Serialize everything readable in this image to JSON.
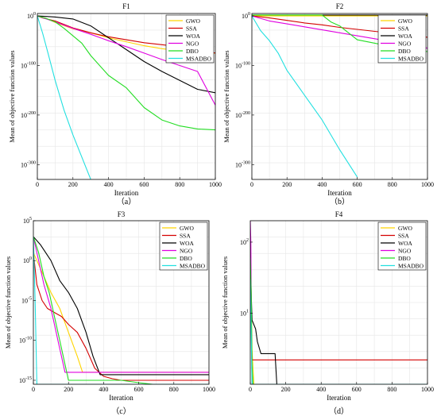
{
  "figure": {
    "ylabel": "Mean of objective function values",
    "xlabel": "Iteration"
  },
  "colors": {
    "GWO": "#ffd400",
    "SSA": "#d40000",
    "WOA": "#000000",
    "NGO": "#e000e0",
    "DBO": "#22dd22",
    "MSADBO": "#22e0e0"
  },
  "chart_data": [
    {
      "type": "line",
      "title": "F1",
      "caption": "（a）",
      "xlabel": "Iteration",
      "ylabel": "Mean of objective function values",
      "yscale": "log",
      "xlim": [
        0,
        1000
      ],
      "ylim_exp": [
        -330,
        5
      ],
      "xticks": [
        0,
        200,
        400,
        600,
        800,
        1000
      ],
      "yticks": [
        {
          "exp": 0,
          "label": "10^0"
        },
        {
          "exp": -100,
          "label": "10^-100"
        },
        {
          "exp": -200,
          "label": "10^-200"
        },
        {
          "exp": -300,
          "label": "10^-300"
        }
      ],
      "grid": true,
      "legend": "top-right",
      "series": [
        {
          "name": "GWO",
          "x": [
            0,
            50,
            100,
            200,
            300,
            400,
            500,
            600,
            700,
            800,
            900,
            1000
          ],
          "y_exp": [
            0,
            -5,
            -13,
            -26,
            -34,
            -44,
            -52,
            -60,
            -66,
            -70,
            -72,
            -75
          ]
        },
        {
          "name": "SSA",
          "x": [
            0,
            30,
            100,
            200,
            300,
            400,
            500,
            600,
            700,
            800,
            900,
            1000
          ],
          "y_exp": [
            0,
            -4,
            -10,
            -24,
            -34,
            -42,
            -48,
            -54,
            -58,
            -62,
            -66,
            -75
          ]
        },
        {
          "name": "WOA",
          "x": [
            0,
            50,
            100,
            200,
            300,
            400,
            500,
            600,
            700,
            800,
            900,
            1000
          ],
          "y_exp": [
            0,
            -1,
            -2,
            -6,
            -20,
            -44,
            -68,
            -92,
            -112,
            -130,
            -148,
            -155
          ]
        },
        {
          "name": "NGO",
          "x": [
            0,
            100,
            200,
            300,
            400,
            500,
            600,
            700,
            800,
            900,
            1000
          ],
          "y_exp": [
            0,
            -12,
            -25,
            -37,
            -50,
            -62,
            -75,
            -88,
            -100,
            -112,
            -180
          ]
        },
        {
          "name": "DBO",
          "x": [
            0,
            50,
            100,
            150,
            200,
            250,
            300,
            400,
            500,
            600,
            700,
            800,
            900,
            1000
          ],
          "y_exp": [
            0,
            -5,
            -12,
            -25,
            -40,
            -55,
            -80,
            -120,
            -145,
            -185,
            -210,
            -222,
            -228,
            -230
          ]
        },
        {
          "name": "MSADBO",
          "x": [
            0,
            30,
            60,
            100,
            150,
            200,
            250,
            300
          ],
          "y_exp": [
            0,
            -35,
            -75,
            -130,
            -190,
            -240,
            -285,
            -330
          ]
        }
      ]
    },
    {
      "type": "line",
      "title": "F2",
      "caption": "（b）",
      "xlabel": "Iteration",
      "ylabel": "Mean of objective function values",
      "yscale": "log",
      "xlim": [
        0,
        1000
      ],
      "ylim_exp": [
        -330,
        5
      ],
      "xticks": [
        0,
        200,
        400,
        600,
        800,
        1000
      ],
      "yticks": [
        {
          "exp": 0,
          "label": "10^0"
        },
        {
          "exp": -100,
          "label": "10^-100"
        },
        {
          "exp": -200,
          "label": "10^-200"
        },
        {
          "exp": -300,
          "label": "10^-300"
        }
      ],
      "grid": true,
      "legend": "top-right",
      "series": [
        {
          "name": "GWO",
          "x": [
            0,
            1000
          ],
          "y_exp": [
            0,
            0
          ]
        },
        {
          "name": "SSA",
          "x": [
            0,
            100,
            200,
            300,
            400,
            500,
            600,
            700,
            800,
            900,
            1000
          ],
          "y_exp": [
            0,
            -4,
            -9,
            -14,
            -18,
            -23,
            -27,
            -31,
            -35,
            -39,
            -43
          ]
        },
        {
          "name": "WOA",
          "x": [
            0,
            1000
          ],
          "y_exp": [
            2,
            2
          ]
        },
        {
          "name": "NGO",
          "x": [
            0,
            100,
            200,
            300,
            400,
            500,
            600,
            700,
            800,
            900,
            1000
          ],
          "y_exp": [
            0,
            -10,
            -16,
            -22,
            -28,
            -34,
            -40,
            -46,
            -52,
            -58,
            -65
          ]
        },
        {
          "name": "DBO",
          "x": [
            0,
            100,
            200,
            300,
            400,
            450,
            500,
            600,
            700,
            800,
            900,
            1000
          ],
          "y_exp": [
            2,
            2,
            2,
            2,
            2,
            -12,
            -20,
            -48,
            -55,
            -62,
            -68,
            -72
          ]
        },
        {
          "name": "MSADBO",
          "x": [
            0,
            50,
            100,
            150,
            200,
            300,
            400,
            500,
            600
          ],
          "y_exp": [
            0,
            -30,
            -50,
            -75,
            -110,
            -160,
            -210,
            -270,
            -325
          ]
        }
      ]
    },
    {
      "type": "line",
      "title": "F3",
      "caption": "（c）",
      "xlabel": "Iteration",
      "ylabel": "Mean of objective function values",
      "yscale": "log",
      "xlim": [
        0,
        1000
      ],
      "ylim_exp": [
        -15.5,
        5
      ],
      "xticks": [
        0,
        200,
        400,
        600,
        800,
        1000
      ],
      "yticks": [
        {
          "exp": 5,
          "label": "10^5"
        },
        {
          "exp": 0,
          "label": "10^0"
        },
        {
          "exp": -5,
          "label": "10^-5"
        },
        {
          "exp": -10,
          "label": "10^-10"
        },
        {
          "exp": -15,
          "label": "10^-15"
        }
      ],
      "grid": true,
      "legend": "top-right",
      "series": [
        {
          "name": "GWO",
          "x": [
            0,
            20,
            60,
            100,
            150,
            200,
            250,
            280,
            300,
            1000
          ],
          "y_exp": [
            1,
            0,
            -2,
            -4,
            -6,
            -9,
            -12,
            -14,
            -14,
            -14
          ]
        },
        {
          "name": "SSA",
          "x": [
            0,
            20,
            50,
            80,
            120,
            160,
            200,
            250,
            300,
            350,
            400,
            450,
            500,
            1000
          ],
          "y_exp": [
            1,
            -3,
            -5,
            -6,
            -6.5,
            -7,
            -8,
            -9,
            -11,
            -13.5,
            -14.5,
            -14.8,
            -15,
            -15
          ]
        },
        {
          "name": "WOA",
          "x": [
            0,
            40,
            100,
            150,
            200,
            250,
            300,
            340,
            380,
            1000
          ],
          "y_exp": [
            3,
            2,
            0,
            -2.5,
            -4,
            -6,
            -9,
            -12,
            -14.3,
            -14.3
          ]
        },
        {
          "name": "NGO",
          "x": [
            0,
            30,
            60,
            100,
            140,
            170,
            180,
            1000
          ],
          "y_exp": [
            3,
            0,
            -3,
            -6,
            -10,
            -13,
            -14,
            -14
          ]
        },
        {
          "name": "DBO",
          "x": [
            0,
            30,
            60,
            90,
            120,
            150,
            180,
            200,
            250,
            500,
            600,
            680
          ],
          "y_exp": [
            3,
            1,
            -2,
            -4,
            -7,
            -10,
            -13,
            -15,
            -15,
            -15,
            -15.3,
            -15.5
          ]
        },
        {
          "name": "MSADBO",
          "x": [
            0,
            10,
            20,
            1000
          ],
          "y_exp": [
            3,
            -5,
            -15.5,
            -15.5
          ]
        }
      ]
    },
    {
      "type": "line",
      "title": "F4",
      "caption": "（d）",
      "xlabel": "Iteration",
      "ylabel": "Mean of objective function values",
      "yscale": "log",
      "xlim": [
        0,
        1000
      ],
      "ylim": [
        1,
        200
      ],
      "xticks": [
        0,
        200,
        400,
        600,
        800,
        1000
      ],
      "yticks": [
        {
          "value": 10,
          "label": "10^1"
        },
        {
          "value": 100,
          "label": "10^2"
        }
      ],
      "grid": true,
      "legend": "top-right",
      "series": [
        {
          "name": "GWO",
          "x": [
            0,
            5,
            10,
            20,
            1000
          ],
          "y": [
            100,
            20,
            3,
            1,
            1
          ]
        },
        {
          "name": "SSA",
          "x": [
            0,
            5,
            10,
            1000
          ],
          "y": [
            100,
            10,
            2.2,
            2.2
          ]
        },
        {
          "name": "WOA",
          "x": [
            0,
            5,
            10,
            30,
            40,
            60,
            140,
            150,
            1000
          ],
          "y": [
            100,
            20,
            8,
            6,
            4,
            2.7,
            2.7,
            1,
            1
          ]
        },
        {
          "name": "NGO",
          "x": [
            0,
            3,
            6,
            10,
            1000
          ],
          "y": [
            200,
            100,
            10,
            1,
            1
          ]
        },
        {
          "name": "DBO",
          "x": [
            0,
            5,
            10,
            15,
            1000
          ],
          "y": [
            60,
            20,
            2,
            1,
            1
          ]
        },
        {
          "name": "MSADBO",
          "x": [
            0,
            5,
            10,
            1000
          ],
          "y": [
            30,
            5,
            1,
            1
          ]
        }
      ]
    }
  ]
}
